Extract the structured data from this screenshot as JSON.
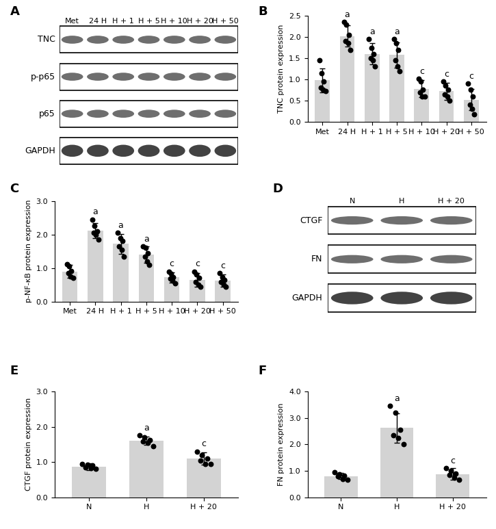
{
  "blots": [
    {
      "title": "A",
      "lanes": [
        "Met",
        "24 H",
        "H + 1",
        "H + 5",
        "H + 10",
        "H + 20",
        "H + 50"
      ],
      "rows": [
        "TNC",
        "p-p65",
        "p65",
        "GAPDH"
      ]
    },
    {
      "title": "D",
      "lanes": [
        "N",
        "H",
        "H + 20"
      ],
      "rows": [
        "CTGF",
        "FN",
        "GAPDH"
      ]
    }
  ],
  "chart_data": [
    {
      "type": "bar",
      "title": "B",
      "ylabel": "TNC protein expression",
      "categories": [
        "Met",
        "24 H",
        "H + 1",
        "H + 5",
        "H + 10",
        "H + 20",
        "H + 50"
      ],
      "values": [
        0.98,
        2.02,
        1.6,
        1.58,
        0.78,
        0.72,
        0.52
      ],
      "errors": [
        0.28,
        0.25,
        0.25,
        0.3,
        0.2,
        0.2,
        0.25
      ],
      "points": [
        [
          1.45,
          1.15,
          0.95,
          0.8,
          0.75,
          0.72
        ],
        [
          2.35,
          2.3,
          2.05,
          1.9,
          1.85,
          1.7
        ],
        [
          1.95,
          1.75,
          1.6,
          1.5,
          1.45,
          1.3
        ],
        [
          1.95,
          1.85,
          1.7,
          1.45,
          1.3,
          1.2
        ],
        [
          1.02,
          0.95,
          0.75,
          0.7,
          0.6,
          0.6
        ],
        [
          0.95,
          0.85,
          0.75,
          0.65,
          0.6,
          0.5
        ],
        [
          0.9,
          0.75,
          0.6,
          0.4,
          0.3,
          0.18
        ]
      ],
      "annotations": [
        null,
        "a",
        "a",
        "a",
        "c",
        "c",
        "c"
      ],
      "color": "#d3d3d3",
      "ylim": [
        0,
        2.5
      ],
      "yticks": [
        {
          "value": 0,
          "label": "0.0"
        },
        {
          "value": 0.5,
          "label": "0.5"
        },
        {
          "value": 1,
          "label": "1.0"
        },
        {
          "value": 1.5,
          "label": "1.5"
        },
        {
          "value": 2,
          "label": "2.0"
        },
        {
          "value": 2.5,
          "label": "2.5"
        }
      ]
    },
    {
      "type": "bar",
      "title": "C",
      "ylabel": "p-NF-κB protein expression",
      "categories": [
        "Met",
        "24 H",
        "H + 1",
        "H + 5",
        "H + 10",
        "H + 20",
        "H + 50"
      ],
      "values": [
        0.9,
        2.12,
        1.72,
        1.4,
        0.72,
        0.65,
        0.62
      ],
      "errors": [
        0.2,
        0.22,
        0.3,
        0.25,
        0.15,
        0.2,
        0.18
      ],
      "points": [
        [
          1.12,
          1.05,
          0.92,
          0.85,
          0.75,
          0.7
        ],
        [
          2.45,
          2.25,
          2.1,
          2.05,
          2.0,
          1.85
        ],
        [
          2.05,
          1.9,
          1.8,
          1.65,
          1.55,
          1.35
        ],
        [
          1.65,
          1.6,
          1.45,
          1.35,
          1.2,
          1.1
        ],
        [
          0.9,
          0.82,
          0.72,
          0.68,
          0.62,
          0.55
        ],
        [
          0.9,
          0.8,
          0.7,
          0.58,
          0.5,
          0.45
        ],
        [
          0.85,
          0.72,
          0.65,
          0.58,
          0.5,
          0.45
        ]
      ],
      "annotations": [
        null,
        "a",
        "a",
        "a",
        "c",
        "c",
        "c"
      ],
      "color": "#d3d3d3",
      "ylim": [
        0,
        3.0
      ],
      "yticks": [
        {
          "value": 0,
          "label": "0.0"
        },
        {
          "value": 1,
          "label": "1.0"
        },
        {
          "value": 2,
          "label": "2.0"
        },
        {
          "value": 3,
          "label": "3.0"
        }
      ]
    },
    {
      "type": "bar",
      "title": "E",
      "ylabel": "CTGF protein expression",
      "categories": [
        "N",
        "H",
        "H + 20"
      ],
      "values": [
        0.87,
        1.6,
        1.1
      ],
      "errors": [
        0.1,
        0.12,
        0.17
      ],
      "points": [
        [
          0.95,
          0.92,
          0.9,
          0.85,
          0.82,
          0.8
        ],
        [
          1.75,
          1.7,
          1.62,
          1.58,
          1.55,
          1.45
        ],
        [
          1.3,
          1.2,
          1.1,
          1.05,
          0.95,
          0.95
        ]
      ],
      "annotations": [
        null,
        "a",
        "c"
      ],
      "color": "#d3d3d3",
      "ylim": [
        0,
        3.0
      ],
      "yticks": [
        {
          "value": 0,
          "label": "0.0"
        },
        {
          "value": 1,
          "label": "1.0"
        },
        {
          "value": 2,
          "label": "2.0"
        },
        {
          "value": 3,
          "label": "3.0"
        }
      ]
    },
    {
      "type": "bar",
      "title": "F",
      "ylabel": "FN protein expression",
      "categories": [
        "N",
        "H",
        "H + 20"
      ],
      "values": [
        0.8,
        2.62,
        0.88
      ],
      "errors": [
        0.12,
        0.55,
        0.22
      ],
      "points": [
        [
          0.95,
          0.88,
          0.82,
          0.78,
          0.7,
          0.65
        ],
        [
          3.45,
          3.2,
          2.55,
          2.35,
          2.25,
          2.0
        ],
        [
          1.1,
          1.0,
          0.9,
          0.85,
          0.75,
          0.65
        ]
      ],
      "annotations": [
        null,
        "a",
        "c"
      ],
      "color": "#d3d3d3",
      "ylim": [
        0,
        4.0
      ],
      "yticks": [
        {
          "value": 0,
          "label": "0.0"
        },
        {
          "value": 1,
          "label": "1.0"
        },
        {
          "value": 2,
          "label": "2.0"
        },
        {
          "value": 3,
          "label": "3.0"
        },
        {
          "value": 4,
          "label": "4.0"
        }
      ]
    }
  ]
}
